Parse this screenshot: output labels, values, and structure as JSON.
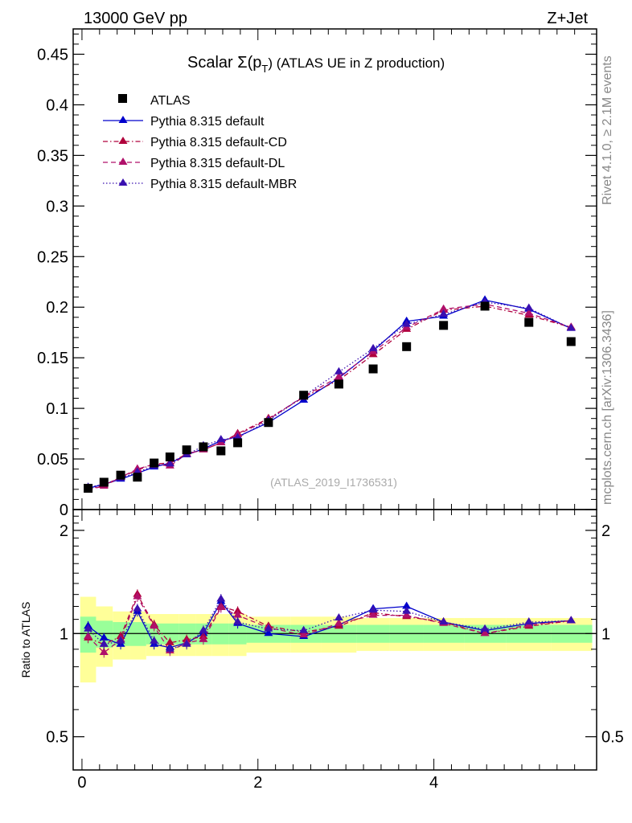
{
  "header": {
    "left": "13000 GeV pp",
    "right": "Z+Jet"
  },
  "side_labels": {
    "rivet": "Rivet 4.1.0, ≥ 2.1M events",
    "mcplots": "mcplots.cern.ch [arXiv:1306.3436]"
  },
  "colors": {
    "atlas": "#000000",
    "default": "#0000cc",
    "cd": "#b0003c",
    "dl": "#b0106a",
    "mbr": "#3a10b0",
    "band_yellow": "#ffff99",
    "band_green": "#99ff99"
  },
  "chart_data": [
    {
      "type": "scatter",
      "title": "Scalar Σ(p_T) (ATLAS UE in Z production)",
      "title_main": "Scalar ",
      "title_sigma": "Σ(p",
      "title_sub": "T",
      "title_rest": ") (ATLAS UE in Z production)",
      "watermark": "(ATLAS_2019_I1736531)",
      "xlim": [
        -0.1,
        5.85
      ],
      "ylim": [
        0,
        0.475
      ],
      "y_ticks": [
        0,
        0.05,
        0.1,
        0.15,
        0.2,
        0.25,
        0.3,
        0.35,
        0.4,
        0.45
      ],
      "y_tick_labels": [
        "0",
        "0.05",
        "0.1",
        "0.15",
        "0.2",
        "0.25",
        "0.3",
        "0.35",
        "0.4",
        "0.45"
      ],
      "x": [
        0.07,
        0.25,
        0.44,
        0.63,
        0.82,
        1.0,
        1.19,
        1.38,
        1.58,
        1.77,
        2.12,
        2.52,
        2.92,
        3.31,
        3.69,
        4.11,
        4.58,
        5.08,
        5.56
      ],
      "series": [
        {
          "name": "ATLAS",
          "style": "square",
          "values": [
            0.021,
            0.027,
            0.034,
            0.032,
            0.046,
            0.052,
            0.059,
            0.062,
            0.058,
            0.066,
            0.086,
            0.113,
            0.124,
            0.139,
            0.161,
            0.182,
            0.201,
            0.185,
            0.166
          ]
        },
        {
          "name": "Pythia 8.315 default",
          "style": "solid",
          "values": [
            0.021,
            0.025,
            0.03,
            0.036,
            0.042,
            0.046,
            0.054,
            0.06,
            0.068,
            0.072,
            0.086,
            0.108,
            0.13,
            0.157,
            0.186,
            0.191,
            0.207,
            0.198,
            0.179
          ]
        },
        {
          "name": "Pythia 8.315 default-CD",
          "style": "dashdot",
          "values": [
            0.02,
            0.024,
            0.032,
            0.039,
            0.045,
            0.046,
            0.055,
            0.059,
            0.066,
            0.075,
            0.09,
            0.111,
            0.128,
            0.153,
            0.178,
            0.197,
            0.201,
            0.192,
            0.18
          ]
        },
        {
          "name": "Pythia 8.315 default-DL",
          "style": "dashed",
          "values": [
            0.02,
            0.023,
            0.032,
            0.04,
            0.045,
            0.043,
            0.055,
            0.059,
            0.066,
            0.074,
            0.089,
            0.112,
            0.131,
            0.156,
            0.18,
            0.198,
            0.203,
            0.194,
            0.18
          ]
        },
        {
          "name": "Pythia 8.315 default-MBR",
          "style": "dotted",
          "values": [
            0.022,
            0.025,
            0.031,
            0.037,
            0.043,
            0.045,
            0.054,
            0.063,
            0.069,
            0.071,
            0.088,
            0.112,
            0.136,
            0.159,
            0.183,
            0.193,
            0.205,
            0.199,
            0.179
          ]
        }
      ]
    },
    {
      "type": "line",
      "ylabel": "Ratio to ATLAS",
      "xlim": [
        -0.1,
        5.85
      ],
      "ylim": [
        0.4,
        2.3
      ],
      "y_ticks": [
        0.5,
        1,
        2
      ],
      "y_tick_labels": [
        "0.5",
        "1",
        "2"
      ],
      "x_ticks": [
        0,
        2,
        4
      ],
      "x_tick_labels": [
        "0",
        "2",
        "4"
      ],
      "x_edges": [
        -0.02,
        0.16,
        0.35,
        0.54,
        0.73,
        0.91,
        1.1,
        1.29,
        1.48,
        1.67,
        1.87,
        2.37,
        2.72,
        3.12,
        3.5,
        3.88,
        4.35,
        4.82,
        5.33,
        5.8
      ],
      "band_outer": [
        0.28,
        0.2,
        0.16,
        0.16,
        0.14,
        0.14,
        0.14,
        0.14,
        0.14,
        0.14,
        0.12,
        0.12,
        0.12,
        0.11,
        0.11,
        0.11,
        0.11,
        0.11,
        0.11
      ],
      "band_inner": [
        0.12,
        0.09,
        0.08,
        0.08,
        0.07,
        0.07,
        0.07,
        0.07,
        0.07,
        0.07,
        0.06,
        0.06,
        0.06,
        0.06,
        0.06,
        0.06,
        0.06,
        0.06,
        0.06
      ],
      "ratio_series": [
        {
          "name": "Pythia 8.315 default",
          "values": [
            1.05,
            0.97,
            0.93,
            1.16,
            0.93,
            0.91,
            0.94,
            1.0,
            1.24,
            1.07,
            1.0,
            0.98,
            1.06,
            1.18,
            1.2,
            1.08,
            1.02,
            1.07,
            1.09
          ]
        },
        {
          "name": "Pythia 8.315 default-CD",
          "values": [
            0.97,
            0.93,
            0.98,
            1.3,
            1.06,
            0.94,
            0.96,
            0.98,
            1.2,
            1.16,
            1.05,
            1.01,
            1.05,
            1.15,
            1.12,
            1.08,
            1.0,
            1.05,
            1.09
          ]
        },
        {
          "name": "Pythia 8.315 default-DL",
          "values": [
            0.98,
            0.88,
            0.96,
            1.28,
            1.05,
            0.89,
            0.94,
            0.96,
            1.19,
            1.13,
            1.04,
            0.99,
            1.07,
            1.13,
            1.13,
            1.07,
            1.0,
            1.06,
            1.09
          ]
        },
        {
          "name": "Pythia 8.315 default-MBR",
          "values": [
            1.03,
            0.93,
            0.95,
            1.18,
            0.95,
            0.9,
            0.93,
            1.02,
            1.26,
            1.08,
            1.03,
            1.02,
            1.11,
            1.17,
            1.16,
            1.08,
            1.03,
            1.08,
            1.09
          ]
        }
      ]
    }
  ]
}
